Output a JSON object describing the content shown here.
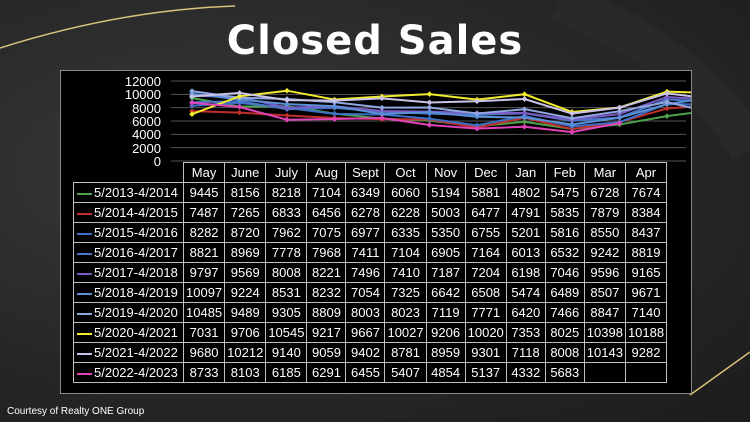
{
  "slide": {
    "title": "Closed Sales",
    "credit": "Courtesy of Realty ONE Group"
  },
  "chart_data": {
    "type": "line",
    "title": "",
    "xlabel": "",
    "ylabel": "",
    "ylim": [
      0,
      12000
    ],
    "y_ticks": [
      "12000",
      "10000",
      "8000",
      "6000",
      "4000",
      "2000",
      "0"
    ],
    "grid": true,
    "legend": "table-left",
    "categories": [
      "May",
      "June",
      "July",
      "Aug",
      "Sept",
      "Oct",
      "Nov",
      "Dec",
      "Jan",
      "Feb",
      "Mar",
      "Apr"
    ],
    "series": [
      {
        "name": "5/2013-4/2014",
        "color": "#4ea24e",
        "values": [
          9445,
          8156,
          8218,
          7104,
          6349,
          6060,
          5194,
          5881,
          4802,
          5475,
          6728,
          7674
        ]
      },
      {
        "name": "5/2014-4/2015",
        "color": "#c0302a",
        "values": [
          7487,
          7265,
          6833,
          6456,
          6278,
          6228,
          5003,
          6477,
          4791,
          5835,
          7879,
          8384
        ]
      },
      {
        "name": "5/2015-4/2016",
        "color": "#3c6fc4",
        "values": [
          8282,
          8720,
          7962,
          7075,
          6977,
          6335,
          5350,
          6755,
          5201,
          5816,
          8550,
          8437
        ]
      },
      {
        "name": "5/2016-4/2017",
        "color": "#4a77c8",
        "values": [
          8821,
          8969,
          7778,
          7968,
          7411,
          7104,
          6905,
          7164,
          6013,
          6532,
          9242,
          8819
        ]
      },
      {
        "name": "5/2017-4/2018",
        "color": "#7a5cc4",
        "values": [
          9797,
          9569,
          8008,
          8221,
          7496,
          7410,
          7187,
          7204,
          6198,
          7046,
          9596,
          9165
        ]
      },
      {
        "name": "5/2018-4/2019",
        "color": "#5b8fd6",
        "values": [
          10097,
          9224,
          8531,
          8232,
          7054,
          7325,
          6642,
          6508,
          5474,
          6489,
          8507,
          9671
        ]
      },
      {
        "name": "5/2019-4/2020",
        "color": "#8fa6e0",
        "values": [
          10485,
          9489,
          9305,
          8809,
          8003,
          8023,
          7119,
          7771,
          6420,
          7466,
          8847,
          7140
        ]
      },
      {
        "name": "5/2020-4/2021",
        "color": "#f2ec2e",
        "values": [
          7031,
          9706,
          10545,
          9217,
          9667,
          10027,
          9206,
          10020,
          7353,
          8025,
          10398,
          10188
        ]
      },
      {
        "name": "5/2021-4/2022",
        "color": "#c9c3e8",
        "values": [
          9680,
          10212,
          9140,
          9059,
          9402,
          8781,
          8959,
          9301,
          7118,
          8008,
          10143,
          9282
        ]
      },
      {
        "name": "5/2022-4/2023",
        "color": "#e043b8",
        "values": [
          8733,
          8103,
          6185,
          6291,
          6455,
          5407,
          4854,
          5137,
          4332,
          5683,
          null,
          null
        ]
      }
    ]
  }
}
